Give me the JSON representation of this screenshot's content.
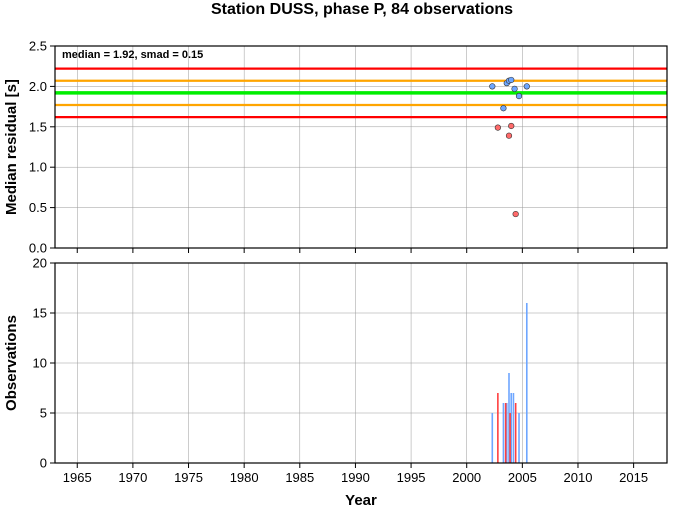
{
  "chart_data": [
    {
      "panel": "top",
      "type": "scatter",
      "title": "Station DUSS, phase P, 84 observations",
      "annotation": "median = 1.92, smad = 0.15",
      "xlabel": "",
      "ylabel": "Median residual [s]",
      "xlim": [
        1963,
        2018
      ],
      "ylim": [
        0,
        2.5
      ],
      "xticks": [
        1965,
        1970,
        1975,
        1980,
        1985,
        1990,
        1995,
        2000,
        2005,
        2010,
        2015
      ],
      "yticks": [
        0.0,
        0.5,
        1.0,
        1.5,
        2.0,
        2.5
      ],
      "ytick_labels": [
        "0.0",
        "0.5",
        "1.0",
        "1.5",
        "2.0",
        "2.5"
      ],
      "grid": true,
      "reference_lines": [
        {
          "y": 2.22,
          "color": "#ff0000"
        },
        {
          "y": 2.07,
          "color": "#ffa500"
        },
        {
          "y": 1.92,
          "color": "#00ee00"
        },
        {
          "y": 1.77,
          "color": "#ffa500"
        },
        {
          "y": 1.62,
          "color": "#ff0000"
        }
      ],
      "series": [
        {
          "color": "#6ea6ff",
          "points": [
            {
              "x": 2002.3,
              "y": 2.0
            },
            {
              "x": 2003.3,
              "y": 1.73
            },
            {
              "x": 2003.6,
              "y": 2.04
            },
            {
              "x": 2003.8,
              "y": 2.07
            },
            {
              "x": 2004.0,
              "y": 2.08
            },
            {
              "x": 2004.3,
              "y": 1.97
            },
            {
              "x": 2004.7,
              "y": 1.88
            },
            {
              "x": 2005.4,
              "y": 2.0
            }
          ]
        },
        {
          "color": "#ff6a6a",
          "points": [
            {
              "x": 2002.8,
              "y": 1.49
            },
            {
              "x": 2003.8,
              "y": 1.39
            },
            {
              "x": 2004.0,
              "y": 1.51
            },
            {
              "x": 2004.4,
              "y": 0.42
            }
          ]
        }
      ]
    },
    {
      "panel": "bottom",
      "type": "bar",
      "xlabel": "Year",
      "ylabel": "Observations",
      "xlim": [
        1963,
        2018
      ],
      "ylim": [
        0,
        20
      ],
      "xticks": [
        1965,
        1970,
        1975,
        1980,
        1985,
        1990,
        1995,
        2000,
        2005,
        2010,
        2015
      ],
      "yticks": [
        0,
        5,
        10,
        15,
        20
      ],
      "grid": true,
      "series": [
        {
          "color": "#6ea6ff",
          "bars": [
            {
              "x": 2002.3,
              "value": 5
            },
            {
              "x": 2003.3,
              "value": 6
            },
            {
              "x": 2003.6,
              "value": 6
            },
            {
              "x": 2003.8,
              "value": 9
            },
            {
              "x": 2004.0,
              "value": 7
            },
            {
              "x": 2004.2,
              "value": 7
            },
            {
              "x": 2004.7,
              "value": 5
            },
            {
              "x": 2005.4,
              "value": 16
            }
          ]
        },
        {
          "color": "#ff4040",
          "bars": [
            {
              "x": 2002.8,
              "value": 7
            },
            {
              "x": 2003.5,
              "value": 6
            },
            {
              "x": 2003.9,
              "value": 5
            },
            {
              "x": 2004.4,
              "value": 6
            }
          ]
        }
      ]
    }
  ]
}
